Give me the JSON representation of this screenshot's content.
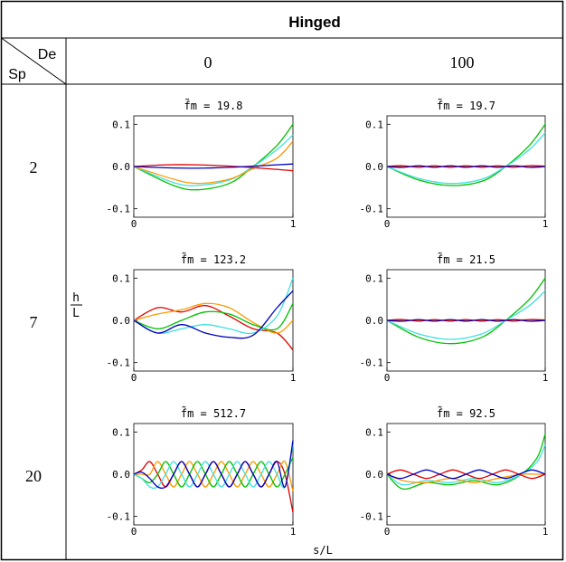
{
  "table": {
    "title": "Hinged",
    "corner_top": "De",
    "corner_bottom": "Sp",
    "col_headers": [
      "0",
      "100"
    ],
    "row_headers": [
      "2",
      "7",
      "20"
    ],
    "y_axis_label_top": "h",
    "y_axis_label_bottom": "L",
    "x_axis_label": "s/L"
  },
  "chart_data": [
    {
      "type": "line",
      "row": "2",
      "col": "0",
      "annotation": "f̃m = 19.8",
      "xlim": [
        0,
        1
      ],
      "ylim": [
        -0.12,
        0.12
      ],
      "yticks": [
        "0.1",
        "0.0",
        "-0.1"
      ],
      "xticks": [
        "0",
        "1"
      ],
      "grid": false,
      "series": [
        {
          "color": "#00c000",
          "x": [
            0,
            0.25,
            0.4,
            0.6,
            0.75,
            0.9,
            1.0
          ],
          "y": [
            0,
            -0.045,
            -0.055,
            -0.04,
            0,
            0.05,
            0.1
          ]
        },
        {
          "color": "#40e0e0",
          "x": [
            0,
            0.25,
            0.4,
            0.6,
            0.75,
            0.9,
            1.0
          ],
          "y": [
            0,
            -0.038,
            -0.045,
            -0.032,
            0,
            0.04,
            0.075
          ]
        },
        {
          "color": "#ff9900",
          "x": [
            0,
            0.25,
            0.4,
            0.6,
            0.75,
            0.9,
            1.0
          ],
          "y": [
            0,
            -0.03,
            -0.04,
            -0.03,
            -0.005,
            0.02,
            0.06
          ]
        },
        {
          "color": "#e00000",
          "x": [
            0,
            0.2,
            0.4,
            0.6,
            0.8,
            1.0
          ],
          "y": [
            0,
            0.004,
            0.004,
            0.001,
            -0.004,
            -0.01
          ]
        },
        {
          "color": "#0000c0",
          "x": [
            0,
            0.2,
            0.4,
            0.6,
            0.8,
            1.0
          ],
          "y": [
            0,
            -0.003,
            -0.004,
            -0.002,
            0.002,
            0.006
          ]
        }
      ]
    },
    {
      "type": "line",
      "row": "2",
      "col": "100",
      "annotation": "f̃m = 19.7",
      "xlim": [
        0,
        1
      ],
      "ylim": [
        -0.12,
        0.12
      ],
      "yticks": [
        "0.1",
        "0.0",
        "-0.1"
      ],
      "xticks": [
        "0",
        "1"
      ],
      "grid": false,
      "series": [
        {
          "color": "#00c000",
          "x": [
            0,
            0.2,
            0.4,
            0.6,
            0.75,
            0.9,
            1.0
          ],
          "y": [
            0,
            -0.032,
            -0.045,
            -0.035,
            0,
            0.05,
            0.1
          ]
        },
        {
          "color": "#40e0e0",
          "x": [
            0,
            0.2,
            0.4,
            0.6,
            0.75,
            0.9,
            1.0
          ],
          "y": [
            0,
            -0.028,
            -0.04,
            -0.03,
            0,
            0.04,
            0.08
          ]
        },
        {
          "color": "#ff9900",
          "x": [
            0,
            0.5,
            1.0
          ],
          "y": [
            0,
            0.0,
            0.002
          ]
        },
        {
          "color": "#e00000",
          "x": [
            0,
            0.1,
            0.2,
            0.3,
            0.4,
            0.5,
            0.6,
            0.7,
            0.8,
            0.9,
            1.0
          ],
          "y": [
            0,
            0.002,
            -0.002,
            0.002,
            -0.002,
            0.002,
            -0.002,
            0.002,
            -0.002,
            0.002,
            0
          ]
        },
        {
          "color": "#0000c0",
          "x": [
            0,
            0.1,
            0.2,
            0.3,
            0.4,
            0.5,
            0.6,
            0.7,
            0.8,
            0.9,
            1.0
          ],
          "y": [
            0,
            -0.002,
            0.002,
            -0.002,
            0.002,
            -0.002,
            0.002,
            -0.002,
            0.002,
            -0.002,
            0
          ]
        }
      ]
    },
    {
      "type": "line",
      "row": "7",
      "col": "0",
      "annotation": "f̃m = 123.2",
      "xlim": [
        0,
        1
      ],
      "ylim": [
        -0.12,
        0.12
      ],
      "yticks": [
        "0.1",
        "0.0",
        "-0.1"
      ],
      "xticks": [
        "0",
        "1"
      ],
      "grid": false,
      "series": [
        {
          "color": "#e00000",
          "x": [
            0,
            0.15,
            0.3,
            0.45,
            0.6,
            0.75,
            0.9,
            1.0
          ],
          "y": [
            0,
            0.03,
            0.02,
            0.035,
            0.01,
            -0.02,
            -0.03,
            -0.07
          ]
        },
        {
          "color": "#ff9900",
          "x": [
            0,
            0.15,
            0.3,
            0.45,
            0.6,
            0.75,
            0.9,
            1.0
          ],
          "y": [
            0,
            0.015,
            0.025,
            0.04,
            0.03,
            -0.005,
            -0.03,
            0
          ]
        },
        {
          "color": "#00c000",
          "x": [
            0,
            0.15,
            0.3,
            0.45,
            0.6,
            0.75,
            0.9,
            1.0
          ],
          "y": [
            0,
            -0.02,
            0.0,
            0.02,
            0.015,
            -0.01,
            -0.02,
            0.04
          ]
        },
        {
          "color": "#40e0e0",
          "x": [
            0,
            0.15,
            0.3,
            0.45,
            0.6,
            0.75,
            0.9,
            1.0
          ],
          "y": [
            0,
            -0.03,
            -0.02,
            -0.01,
            -0.02,
            -0.03,
            0.01,
            0.1
          ]
        },
        {
          "color": "#0000c0",
          "x": [
            0,
            0.15,
            0.3,
            0.45,
            0.6,
            0.75,
            0.9,
            1.0
          ],
          "y": [
            0,
            -0.03,
            -0.01,
            -0.03,
            -0.04,
            -0.035,
            0.03,
            0.07
          ]
        }
      ]
    },
    {
      "type": "line",
      "row": "7",
      "col": "100",
      "annotation": "f̃m = 21.5",
      "xlim": [
        0,
        1
      ],
      "ylim": [
        -0.12,
        0.12
      ],
      "yticks": [
        "0.1",
        "0.0",
        "-0.1"
      ],
      "xticks": [
        "0",
        "1"
      ],
      "grid": false,
      "series": [
        {
          "color": "#00c000",
          "x": [
            0,
            0.2,
            0.4,
            0.6,
            0.75,
            0.9,
            1.0
          ],
          "y": [
            0,
            -0.04,
            -0.055,
            -0.04,
            0,
            0.05,
            0.1
          ]
        },
        {
          "color": "#40e0e0",
          "x": [
            0,
            0.2,
            0.4,
            0.6,
            0.75,
            0.9,
            1.0
          ],
          "y": [
            0,
            -0.032,
            -0.045,
            -0.032,
            0,
            0.035,
            0.07
          ]
        },
        {
          "color": "#ff9900",
          "x": [
            0,
            0.5,
            1.0
          ],
          "y": [
            0,
            0.0,
            0.002
          ]
        },
        {
          "color": "#e00000",
          "x": [
            0,
            0.1,
            0.2,
            0.3,
            0.4,
            0.5,
            0.6,
            0.7,
            0.8,
            0.9,
            1.0
          ],
          "y": [
            0,
            0.002,
            -0.002,
            0.002,
            -0.002,
            0.002,
            -0.002,
            0.002,
            -0.002,
            0.002,
            0
          ]
        },
        {
          "color": "#0000c0",
          "x": [
            0,
            0.1,
            0.2,
            0.3,
            0.4,
            0.5,
            0.6,
            0.7,
            0.8,
            0.9,
            1.0
          ],
          "y": [
            0,
            -0.002,
            0.002,
            -0.002,
            0.002,
            -0.002,
            0.002,
            -0.002,
            0.002,
            -0.002,
            0
          ]
        }
      ]
    },
    {
      "type": "line",
      "row": "20",
      "col": "0",
      "annotation": "f̃m = 512.7",
      "xlim": [
        0,
        1
      ],
      "ylim": [
        -0.12,
        0.12
      ],
      "yticks": [
        "0.1",
        "0.0",
        "-0.1"
      ],
      "xticks": [
        "0",
        "1"
      ],
      "grid": false,
      "series": [
        {
          "color": "#e00000",
          "x": [
            0,
            0.05,
            0.1,
            0.15,
            0.2,
            0.25,
            0.3,
            0.35,
            0.4,
            0.45,
            0.5,
            0.55,
            0.6,
            0.65,
            0.7,
            0.75,
            0.8,
            0.85,
            0.9,
            0.95,
            1.0
          ],
          "y": [
            0,
            0.01,
            0.03,
            0.0,
            -0.03,
            0.0,
            0.03,
            0.0,
            -0.03,
            0.0,
            0.03,
            0.0,
            -0.03,
            0.0,
            0.03,
            0.0,
            -0.03,
            0.0,
            0.03,
            0.0,
            -0.09
          ]
        },
        {
          "color": "#ff9900",
          "x": [
            0,
            0.05,
            0.1,
            0.15,
            0.2,
            0.25,
            0.3,
            0.35,
            0.4,
            0.45,
            0.5,
            0.55,
            0.6,
            0.65,
            0.7,
            0.75,
            0.8,
            0.85,
            0.9,
            0.95,
            1.0
          ],
          "y": [
            0,
            0.0,
            0.0,
            0.03,
            0.0,
            -0.03,
            0.0,
            0.03,
            0.0,
            -0.03,
            0.0,
            0.03,
            0.0,
            -0.03,
            0.0,
            0.03,
            0.0,
            -0.03,
            0.0,
            0.03,
            -0.04
          ]
        },
        {
          "color": "#00c000",
          "x": [
            0,
            0.05,
            0.1,
            0.15,
            0.2,
            0.25,
            0.3,
            0.35,
            0.4,
            0.45,
            0.5,
            0.55,
            0.6,
            0.65,
            0.7,
            0.75,
            0.8,
            0.85,
            0.9,
            0.95,
            1.0
          ],
          "y": [
            0,
            -0.01,
            -0.02,
            0.0,
            0.03,
            0.0,
            -0.03,
            0.0,
            0.03,
            0.0,
            -0.03,
            0.0,
            0.03,
            0.0,
            -0.03,
            0.0,
            0.03,
            0.0,
            -0.03,
            0.0,
            0.04
          ]
        },
        {
          "color": "#40e0e0",
          "x": [
            0,
            0.05,
            0.1,
            0.15,
            0.2,
            0.25,
            0.3,
            0.35,
            0.4,
            0.45,
            0.5,
            0.55,
            0.6,
            0.65,
            0.7,
            0.75,
            0.8,
            0.85,
            0.9,
            0.95,
            1.0
          ],
          "y": [
            0,
            -0.01,
            -0.03,
            -0.03,
            0.0,
            0.03,
            0.0,
            -0.03,
            0.0,
            0.03,
            0.0,
            -0.03,
            0.0,
            0.03,
            0.0,
            -0.03,
            0.0,
            0.03,
            0.0,
            -0.03,
            0.07
          ]
        },
        {
          "color": "#0000c0",
          "x": [
            0,
            0.05,
            0.1,
            0.15,
            0.2,
            0.25,
            0.3,
            0.35,
            0.4,
            0.45,
            0.5,
            0.55,
            0.6,
            0.65,
            0.7,
            0.75,
            0.8,
            0.85,
            0.9,
            0.95,
            1.0
          ],
          "y": [
            0,
            0.005,
            -0.01,
            -0.03,
            -0.03,
            0.0,
            0.03,
            0.0,
            -0.03,
            0.0,
            0.03,
            0.0,
            -0.03,
            0.0,
            0.03,
            0.0,
            -0.03,
            0.0,
            0.03,
            -0.03,
            0.08
          ]
        }
      ]
    },
    {
      "type": "line",
      "row": "20",
      "col": "100",
      "annotation": "f̃m = 92.5",
      "xlim": [
        0,
        1
      ],
      "ylim": [
        -0.12,
        0.12
      ],
      "yticks": [
        "0.1",
        "0.0",
        "-0.1"
      ],
      "xticks": [
        "0",
        "1"
      ],
      "grid": false,
      "series": [
        {
          "color": "#00c000",
          "x": [
            0,
            0.1,
            0.25,
            0.4,
            0.55,
            0.7,
            0.85,
            0.95,
            1.0
          ],
          "y": [
            0,
            -0.035,
            -0.02,
            -0.025,
            -0.015,
            -0.025,
            0,
            0.04,
            0.095
          ]
        },
        {
          "color": "#40e0e0",
          "x": [
            0,
            0.1,
            0.25,
            0.4,
            0.55,
            0.7,
            0.85,
            0.95,
            1.0
          ],
          "y": [
            0,
            -0.025,
            -0.015,
            -0.02,
            -0.01,
            -0.02,
            0,
            0.03,
            0.07
          ]
        },
        {
          "color": "#ff9900",
          "x": [
            0,
            0.1,
            0.25,
            0.4,
            0.55,
            0.7,
            0.85,
            0.95,
            1.0
          ],
          "y": [
            0,
            -0.015,
            -0.02,
            -0.01,
            -0.02,
            -0.01,
            0.0,
            0.0,
            0.0
          ]
        },
        {
          "color": "#e00000",
          "x": [
            0,
            0.083,
            0.167,
            0.25,
            0.333,
            0.417,
            0.5,
            0.583,
            0.667,
            0.75,
            0.833,
            0.917,
            1.0
          ],
          "y": [
            0,
            0.01,
            0,
            -0.01,
            0,
            0.01,
            0,
            -0.01,
            0,
            0.01,
            0,
            -0.01,
            0
          ]
        },
        {
          "color": "#0000c0",
          "x": [
            0,
            0.083,
            0.167,
            0.25,
            0.333,
            0.417,
            0.5,
            0.583,
            0.667,
            0.75,
            0.833,
            0.917,
            1.0
          ],
          "y": [
            0,
            -0.01,
            0,
            0.01,
            0,
            -0.01,
            0,
            0.01,
            0,
            -0.01,
            0,
            0.01,
            0
          ]
        }
      ]
    }
  ]
}
